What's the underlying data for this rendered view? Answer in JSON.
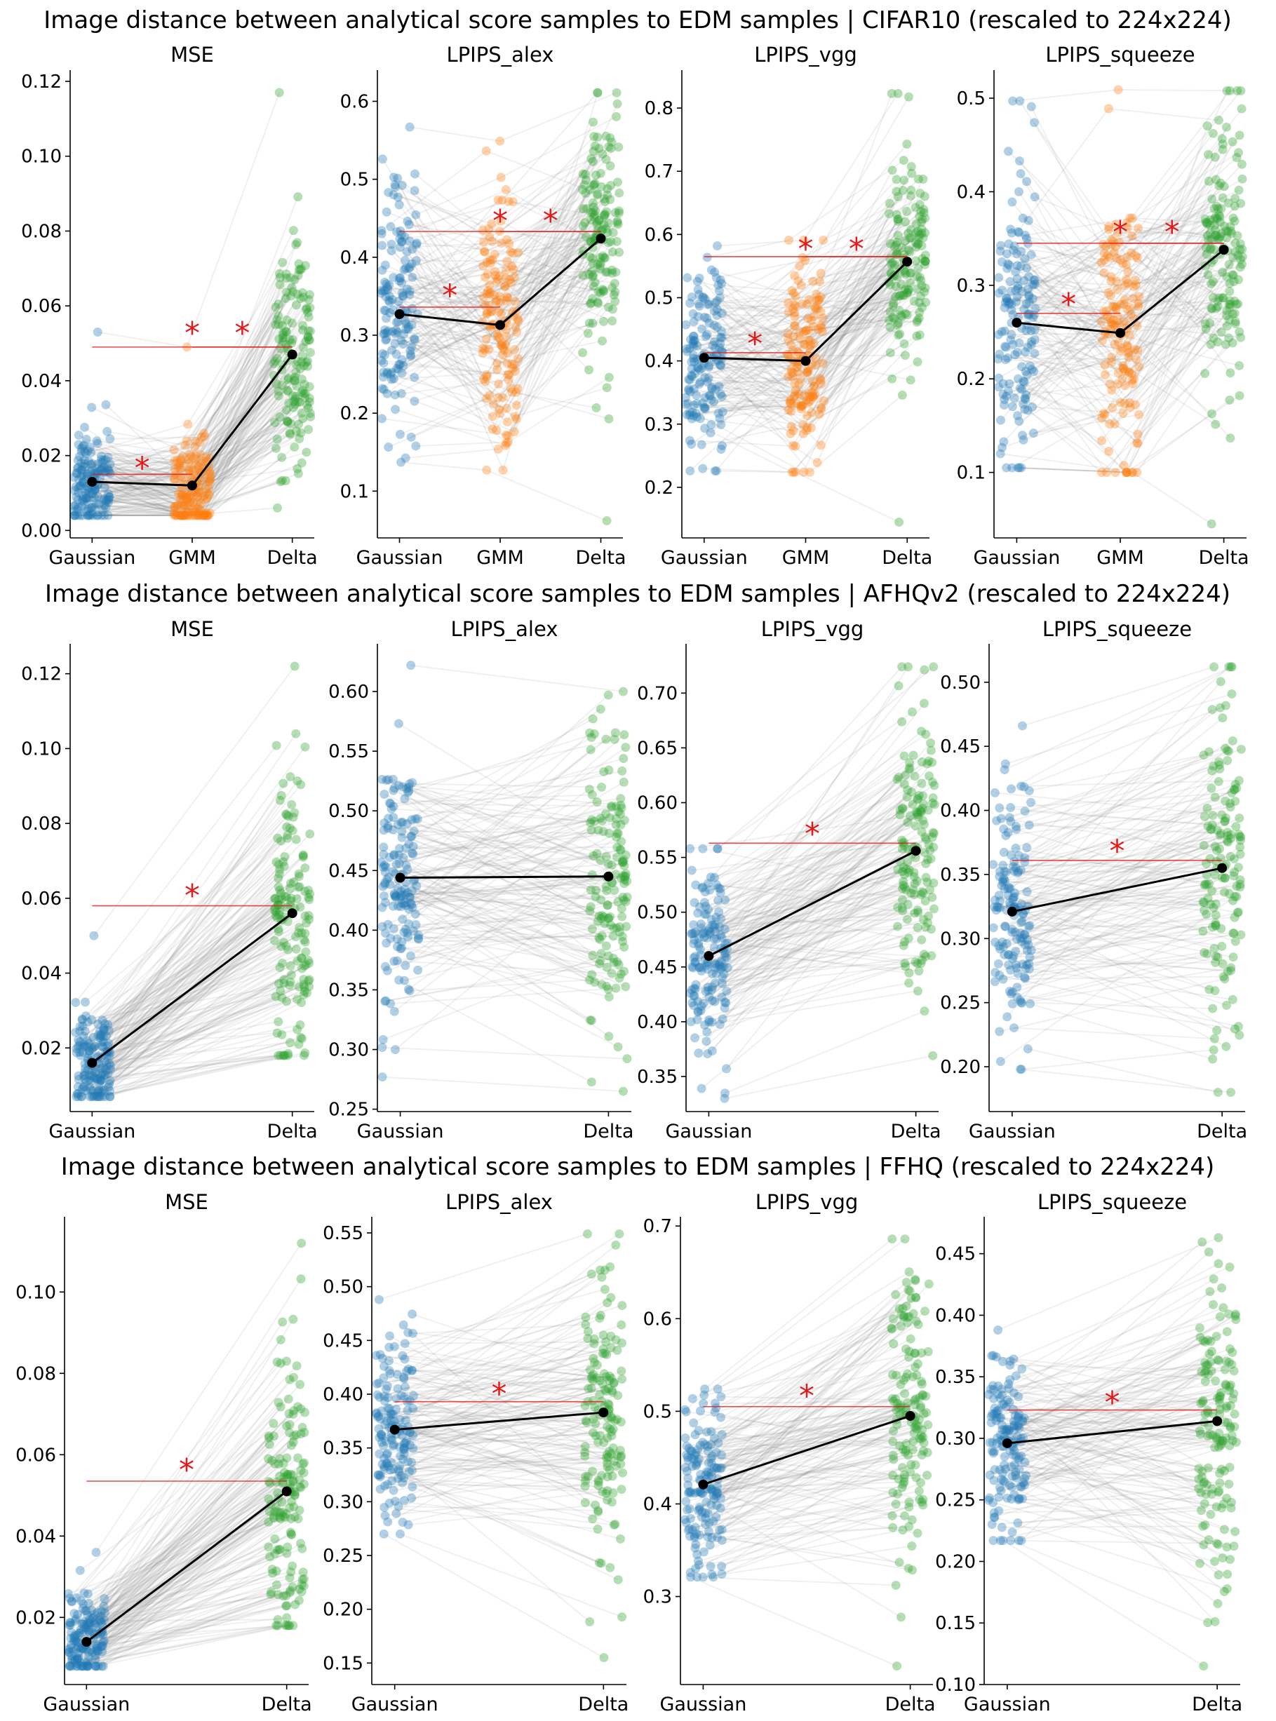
{
  "figure": {
    "rows": [
      {
        "title": "Image distance between analytical score samples to EDM samples | CIFAR10 (rescaled to 224x224)"
      },
      {
        "title": "Image distance between analytical score samples to EDM samples | AFHQv2 (rescaled to 224x224)"
      },
      {
        "title": "Image distance between analytical score samples to EDM samples | FFHQ (rescaled to 224x224)"
      }
    ]
  },
  "colors": {
    "Gaussian": "#1f77b4",
    "GMM": "#ff7f0e",
    "Delta": "#2ca02c",
    "mean": "#000000",
    "significance": "#e31a1c",
    "pairs": "#808080"
  },
  "chart_data": [
    {
      "type": "scatter",
      "dataset": "CIFAR10",
      "title": "MSE",
      "categories": [
        "Gaussian",
        "GMM",
        "Delta"
      ],
      "ylim": [
        -0.002,
        0.123
      ],
      "yticks": [
        0.0,
        0.02,
        0.04,
        0.06,
        0.08,
        0.1,
        0.12
      ],
      "yfmt": 2,
      "series": [
        {
          "name": "Gaussian",
          "mean": 0.013,
          "min": 0.004,
          "max": 0.053,
          "q1": 0.008,
          "q3": 0.018
        },
        {
          "name": "GMM",
          "mean": 0.012,
          "min": 0.004,
          "max": 0.049,
          "q1": 0.007,
          "q3": 0.017
        },
        {
          "name": "Delta",
          "mean": 0.047,
          "min": 0.006,
          "max": 0.117,
          "q1": 0.035,
          "q3": 0.058
        }
      ],
      "significance": [
        {
          "pair": [
            0,
            1
          ],
          "y": 0.015,
          "star": 0.018
        },
        {
          "pair": [
            0,
            2
          ],
          "y": 0.049,
          "star": 0.054
        },
        {
          "pair": [
            1,
            2
          ],
          "y": 0.049,
          "star": 0.054
        }
      ]
    },
    {
      "type": "scatter",
      "dataset": "CIFAR10",
      "title": "LPIPS_alex",
      "categories": [
        "Gaussian",
        "GMM",
        "Delta"
      ],
      "ylim": [
        0.04,
        0.64
      ],
      "yticks": [
        0.1,
        0.2,
        0.3,
        0.4,
        0.5,
        0.6
      ],
      "yfmt": 1,
      "series": [
        {
          "name": "Gaussian",
          "mean": 0.327,
          "min": 0.137,
          "max": 0.567,
          "q1": 0.27,
          "q3": 0.385
        },
        {
          "name": "GMM",
          "mean": 0.313,
          "min": 0.127,
          "max": 0.549,
          "q1": 0.26,
          "q3": 0.37
        },
        {
          "name": "Delta",
          "mean": 0.424,
          "min": 0.062,
          "max": 0.611,
          "q1": 0.37,
          "q3": 0.48
        }
      ],
      "significance": [
        {
          "pair": [
            0,
            1
          ],
          "y": 0.336,
          "star": 0.357
        },
        {
          "pair": [
            0,
            2
          ],
          "y": 0.433,
          "star": 0.453
        },
        {
          "pair": [
            1,
            2
          ],
          "y": 0.433,
          "star": 0.453
        }
      ]
    },
    {
      "type": "scatter",
      "dataset": "CIFAR10",
      "title": "LPIPS_vgg",
      "categories": [
        "Gaussian",
        "GMM",
        "Delta"
      ],
      "ylim": [
        0.12,
        0.86
      ],
      "yticks": [
        0.2,
        0.3,
        0.4,
        0.5,
        0.6,
        0.7,
        0.8
      ],
      "yfmt": 1,
      "series": [
        {
          "name": "Gaussian",
          "mean": 0.405,
          "min": 0.226,
          "max": 0.582,
          "q1": 0.35,
          "q3": 0.46
        },
        {
          "name": "GMM",
          "mean": 0.4,
          "min": 0.224,
          "max": 0.591,
          "q1": 0.35,
          "q3": 0.455
        },
        {
          "name": "Delta",
          "mean": 0.557,
          "min": 0.145,
          "max": 0.823,
          "q1": 0.5,
          "q3": 0.62
        }
      ],
      "significance": [
        {
          "pair": [
            0,
            1
          ],
          "y": 0.413,
          "star": 0.435
        },
        {
          "pair": [
            0,
            2
          ],
          "y": 0.565,
          "star": 0.585
        },
        {
          "pair": [
            1,
            2
          ],
          "y": 0.565,
          "star": 0.585
        }
      ]
    },
    {
      "type": "scatter",
      "dataset": "CIFAR10",
      "title": "LPIPS_squeeze",
      "categories": [
        "Gaussian",
        "GMM",
        "Delta"
      ],
      "ylim": [
        0.03,
        0.53
      ],
      "yticks": [
        0.1,
        0.2,
        0.3,
        0.4,
        0.5
      ],
      "yfmt": 1,
      "series": [
        {
          "name": "Gaussian",
          "mean": 0.26,
          "min": 0.105,
          "max": 0.497,
          "q1": 0.21,
          "q3": 0.31
        },
        {
          "name": "GMM",
          "mean": 0.249,
          "min": 0.1,
          "max": 0.509,
          "q1": 0.2,
          "q3": 0.3
        },
        {
          "name": "Delta",
          "mean": 0.338,
          "min": 0.045,
          "max": 0.508,
          "q1": 0.29,
          "q3": 0.39
        }
      ],
      "significance": [
        {
          "pair": [
            0,
            1
          ],
          "y": 0.27,
          "star": 0.285
        },
        {
          "pair": [
            0,
            2
          ],
          "y": 0.345,
          "star": 0.362
        },
        {
          "pair": [
            1,
            2
          ],
          "y": 0.345,
          "star": 0.362
        }
      ]
    },
    {
      "type": "scatter",
      "dataset": "AFHQv2",
      "title": "MSE",
      "categories": [
        "Gaussian",
        "Delta"
      ],
      "ylim": [
        0.003,
        0.128
      ],
      "yticks": [
        0.02,
        0.04,
        0.06,
        0.08,
        0.1,
        0.12
      ],
      "yfmt": 2,
      "series": [
        {
          "name": "Gaussian",
          "mean": 0.016,
          "min": 0.007,
          "max": 0.05,
          "q1": 0.011,
          "q3": 0.021
        },
        {
          "name": "Delta",
          "mean": 0.056,
          "min": 0.018,
          "max": 0.122,
          "q1": 0.045,
          "q3": 0.072
        }
      ],
      "significance": [
        {
          "pair": [
            0,
            1
          ],
          "y": 0.058,
          "star": 0.062
        }
      ]
    },
    {
      "type": "scatter",
      "dataset": "AFHQv2",
      "title": "LPIPS_alex",
      "categories": [
        "Gaussian",
        "Delta"
      ],
      "ylim": [
        0.248,
        0.64
      ],
      "yticks": [
        0.25,
        0.3,
        0.35,
        0.4,
        0.45,
        0.5,
        0.55,
        0.6
      ],
      "yfmt": 2,
      "series": [
        {
          "name": "Gaussian",
          "mean": 0.444,
          "min": 0.277,
          "max": 0.622,
          "q1": 0.41,
          "q3": 0.48
        },
        {
          "name": "Delta",
          "mean": 0.445,
          "min": 0.265,
          "max": 0.6,
          "q1": 0.4,
          "q3": 0.49
        }
      ],
      "significance": []
    },
    {
      "type": "scatter",
      "dataset": "AFHQv2",
      "title": "LPIPS_vgg",
      "categories": [
        "Gaussian",
        "Delta"
      ],
      "ylim": [
        0.318,
        0.745
      ],
      "yticks": [
        0.35,
        0.4,
        0.45,
        0.5,
        0.55,
        0.6,
        0.65,
        0.7
      ],
      "yfmt": 2,
      "series": [
        {
          "name": "Gaussian",
          "mean": 0.46,
          "min": 0.33,
          "max": 0.558,
          "q1": 0.43,
          "q3": 0.49
        },
        {
          "name": "Delta",
          "mean": 0.556,
          "min": 0.369,
          "max": 0.724,
          "q1": 0.51,
          "q3": 0.6
        }
      ],
      "significance": [
        {
          "pair": [
            0,
            1
          ],
          "y": 0.563,
          "star": 0.576
        }
      ]
    },
    {
      "type": "scatter",
      "dataset": "AFHQv2",
      "title": "LPIPS_squeeze",
      "categories": [
        "Gaussian",
        "Delta"
      ],
      "ylim": [
        0.165,
        0.53
      ],
      "yticks": [
        0.2,
        0.25,
        0.3,
        0.35,
        0.4,
        0.45,
        0.5
      ],
      "yfmt": 2,
      "series": [
        {
          "name": "Gaussian",
          "mean": 0.321,
          "min": 0.198,
          "max": 0.466,
          "q1": 0.29,
          "q3": 0.35
        },
        {
          "name": "Delta",
          "mean": 0.355,
          "min": 0.18,
          "max": 0.512,
          "q1": 0.31,
          "q3": 0.4
        }
      ],
      "significance": [
        {
          "pair": [
            0,
            1
          ],
          "y": 0.361,
          "star": 0.372
        }
      ]
    },
    {
      "type": "scatter",
      "dataset": "FFHQ",
      "title": "MSE",
      "categories": [
        "Gaussian",
        "Delta"
      ],
      "ylim": [
        0.0035,
        0.1185
      ],
      "yticks": [
        0.02,
        0.04,
        0.06,
        0.08,
        0.1
      ],
      "yfmt": 2,
      "series": [
        {
          "name": "Gaussian",
          "mean": 0.014,
          "min": 0.008,
          "max": 0.036,
          "q1": 0.011,
          "q3": 0.019
        },
        {
          "name": "Delta",
          "mean": 0.051,
          "min": 0.018,
          "max": 0.112,
          "q1": 0.04,
          "q3": 0.065
        }
      ],
      "significance": [
        {
          "pair": [
            0,
            1
          ],
          "y": 0.0535,
          "star": 0.0575
        }
      ]
    },
    {
      "type": "scatter",
      "dataset": "FFHQ",
      "title": "LPIPS_alex",
      "categories": [
        "Gaussian",
        "Delta"
      ],
      "ylim": [
        0.13,
        0.565
      ],
      "yticks": [
        0.15,
        0.2,
        0.25,
        0.3,
        0.35,
        0.4,
        0.45,
        0.5,
        0.55
      ],
      "yfmt": 2,
      "series": [
        {
          "name": "Gaussian",
          "mean": 0.367,
          "min": 0.27,
          "max": 0.488,
          "q1": 0.34,
          "q3": 0.4
        },
        {
          "name": "Delta",
          "mean": 0.383,
          "min": 0.155,
          "max": 0.549,
          "q1": 0.34,
          "q3": 0.43
        }
      ],
      "significance": [
        {
          "pair": [
            0,
            1
          ],
          "y": 0.393,
          "star": 0.405
        }
      ]
    },
    {
      "type": "scatter",
      "dataset": "FFHQ",
      "title": "LPIPS_vgg",
      "categories": [
        "Gaussian",
        "Delta"
      ],
      "ylim": [
        0.205,
        0.71
      ],
      "yticks": [
        0.3,
        0.4,
        0.5,
        0.6,
        0.7
      ],
      "yfmt": 1,
      "series": [
        {
          "name": "Gaussian",
          "mean": 0.421,
          "min": 0.321,
          "max": 0.524,
          "q1": 0.39,
          "q3": 0.45
        },
        {
          "name": "Delta",
          "mean": 0.495,
          "min": 0.225,
          "max": 0.686,
          "q1": 0.44,
          "q3": 0.55
        }
      ],
      "significance": [
        {
          "pair": [
            0,
            1
          ],
          "y": 0.505,
          "star": 0.522
        }
      ]
    },
    {
      "type": "scatter",
      "dataset": "FFHQ",
      "title": "LPIPS_squeeze",
      "categories": [
        "Gaussian",
        "Delta"
      ],
      "ylim": [
        0.1,
        0.48
      ],
      "yticks": [
        0.1,
        0.15,
        0.2,
        0.25,
        0.3,
        0.35,
        0.4,
        0.45
      ],
      "yfmt": 2,
      "series": [
        {
          "name": "Gaussian",
          "mean": 0.296,
          "min": 0.217,
          "max": 0.388,
          "q1": 0.27,
          "q3": 0.32
        },
        {
          "name": "Delta",
          "mean": 0.314,
          "min": 0.115,
          "max": 0.463,
          "q1": 0.27,
          "q3": 0.36
        }
      ],
      "significance": [
        {
          "pair": [
            0,
            1
          ],
          "y": 0.323,
          "star": 0.333
        }
      ]
    }
  ]
}
